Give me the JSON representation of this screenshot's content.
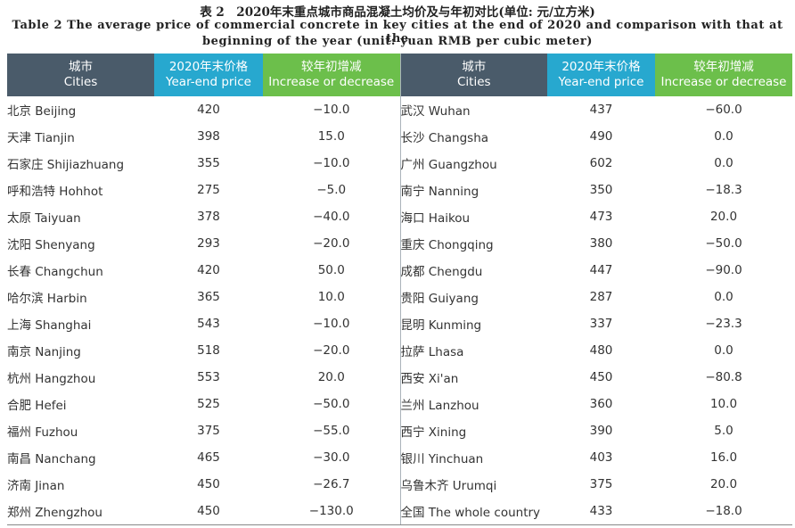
{
  "caption": {
    "line1": "表 2　2020年末重点城市商品混凝土均价及与年初对比(单位: 元/立方米)",
    "line2": "Table 2 The average price of commercial concrete in key cities at the end of 2020 and comparison with that at the",
    "line3": "beginning of the year (unit: yuan RMB per cubic meter)"
  },
  "headers": {
    "city_zh": "城市",
    "city_en": "Cities",
    "price_zh": "2020年末价格",
    "price_en": "Year-end price",
    "chg_zh": "较年初增减",
    "chg_en": "Increase or decrease"
  },
  "left": [
    {
      "city": "北京 Beijing",
      "price": "420",
      "chg": "−10.0"
    },
    {
      "city": "天津 Tianjin",
      "price": "398",
      "chg": "15.0"
    },
    {
      "city": "石家庄 Shijiazhuang",
      "price": "355",
      "chg": "−10.0"
    },
    {
      "city": "呼和浩特 Hohhot",
      "price": "275",
      "chg": "−5.0"
    },
    {
      "city": "太原 Taiyuan",
      "price": "378",
      "chg": "−40.0"
    },
    {
      "city": "沈阳 Shenyang",
      "price": "293",
      "chg": "−20.0"
    },
    {
      "city": "长春 Changchun",
      "price": "420",
      "chg": "50.0"
    },
    {
      "city": "哈尔滨 Harbin",
      "price": "365",
      "chg": "10.0"
    },
    {
      "city": "上海 Shanghai",
      "price": "543",
      "chg": "−10.0"
    },
    {
      "city": "南京 Nanjing",
      "price": "518",
      "chg": "−20.0"
    },
    {
      "city": "杭州 Hangzhou",
      "price": "553",
      "chg": "20.0"
    },
    {
      "city": "合肥 Hefei",
      "price": "525",
      "chg": "−50.0"
    },
    {
      "city": "福州 Fuzhou",
      "price": "375",
      "chg": "−55.0"
    },
    {
      "city": "南昌 Nanchang",
      "price": "465",
      "chg": "−30.0"
    },
    {
      "city": "济南 Jinan",
      "price": "450",
      "chg": "−26.7"
    },
    {
      "city": "郑州 Zhengzhou",
      "price": "450",
      "chg": "−130.0"
    }
  ],
  "right": [
    {
      "city": "武汉 Wuhan",
      "price": "437",
      "chg": "−60.0"
    },
    {
      "city": "长沙 Changsha",
      "price": "490",
      "chg": "0.0"
    },
    {
      "city": "广州 Guangzhou",
      "price": "602",
      "chg": "0.0"
    },
    {
      "city": "南宁 Nanning",
      "price": "350",
      "chg": "−18.3"
    },
    {
      "city": "海口 Haikou",
      "price": "473",
      "chg": "20.0"
    },
    {
      "city": "重庆 Chongqing",
      "price": "380",
      "chg": "−50.0"
    },
    {
      "city": "成都 Chengdu",
      "price": "447",
      "chg": "−90.0"
    },
    {
      "city": "贵阳 Guiyang",
      "price": "287",
      "chg": "0.0"
    },
    {
      "city": "昆明 Kunming",
      "price": "337",
      "chg": "−23.3"
    },
    {
      "city": "拉萨 Lhasa",
      "price": "480",
      "chg": "0.0"
    },
    {
      "city": "西安 Xi'an",
      "price": "450",
      "chg": "−80.8"
    },
    {
      "city": "兰州 Lanzhou",
      "price": "360",
      "chg": "10.0"
    },
    {
      "city": "西宁 Xining",
      "price": "390",
      "chg": "5.0"
    },
    {
      "city": "银川 Yinchuan",
      "price": "403",
      "chg": "16.0"
    },
    {
      "city": "乌鲁木齐 Urumqi",
      "price": "375",
      "chg": "20.0"
    },
    {
      "city": "全国 The whole country",
      "price": "433",
      "chg": "−18.0"
    }
  ]
}
